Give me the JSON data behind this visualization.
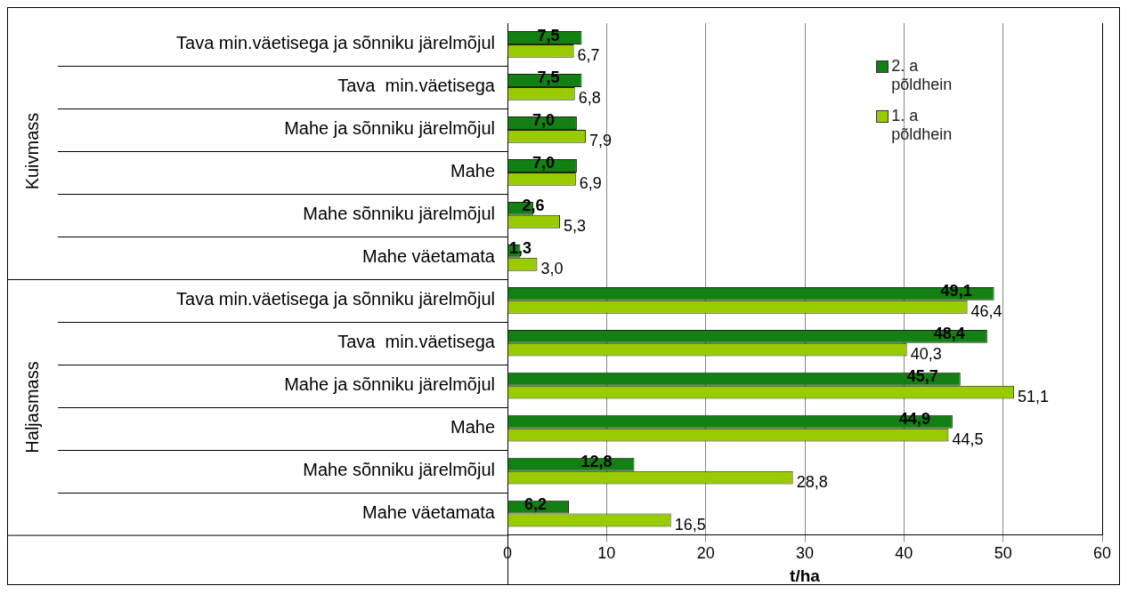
{
  "chart_data": {
    "type": "bar",
    "orientation": "horizontal",
    "xlabel": "t/ha",
    "categories": [
      "Tava min.väetisega ja sõnniku järelmõjul",
      "Tava  min.väetisega",
      "Mahe ja sõnniku järelmõjul",
      "Mahe",
      "Mahe sõnniku järelmõjul",
      "Mahe väetamata",
      "Tava min.väetisega ja sõnniku järelmõjul",
      "Tava  min.väetisega",
      "Mahe ja sõnniku järelmõjul",
      "Mahe",
      "Mahe sõnniku järelmõjul",
      "Mahe väetamata"
    ],
    "series": [
      {
        "name": "2. a põldhein",
        "color": "#128012",
        "values": [
          7.5,
          7.5,
          7.0,
          7.0,
          2.6,
          1.3,
          49.1,
          48.4,
          45.7,
          44.9,
          12.8,
          6.2
        ],
        "value_labels": [
          "7,5",
          "7,5",
          "7,0",
          "7,0",
          "2,6",
          "1,3",
          "49,1",
          "48,4",
          "45,7",
          "44,9",
          "12,8",
          "6,2"
        ]
      },
      {
        "name": "1. a põldhein",
        "color": "#99cc00",
        "values": [
          6.7,
          6.8,
          7.9,
          6.9,
          5.3,
          3.0,
          46.4,
          40.3,
          51.1,
          44.5,
          28.8,
          16.5
        ],
        "value_labels": [
          "6,7",
          "6,8",
          "7,9",
          "6,9",
          "5,3",
          "3,0",
          "46,4",
          "40,3",
          "51,1",
          "44,5",
          "28,8",
          "16,5"
        ]
      }
    ],
    "annotations": [
      "Kuivmass",
      "Haljasmass"
    ],
    "xlim": [
      0,
      60
    ],
    "xticks": [
      0,
      10,
      20,
      30,
      40,
      50,
      60
    ],
    "grid": "x",
    "legend": "top right"
  }
}
